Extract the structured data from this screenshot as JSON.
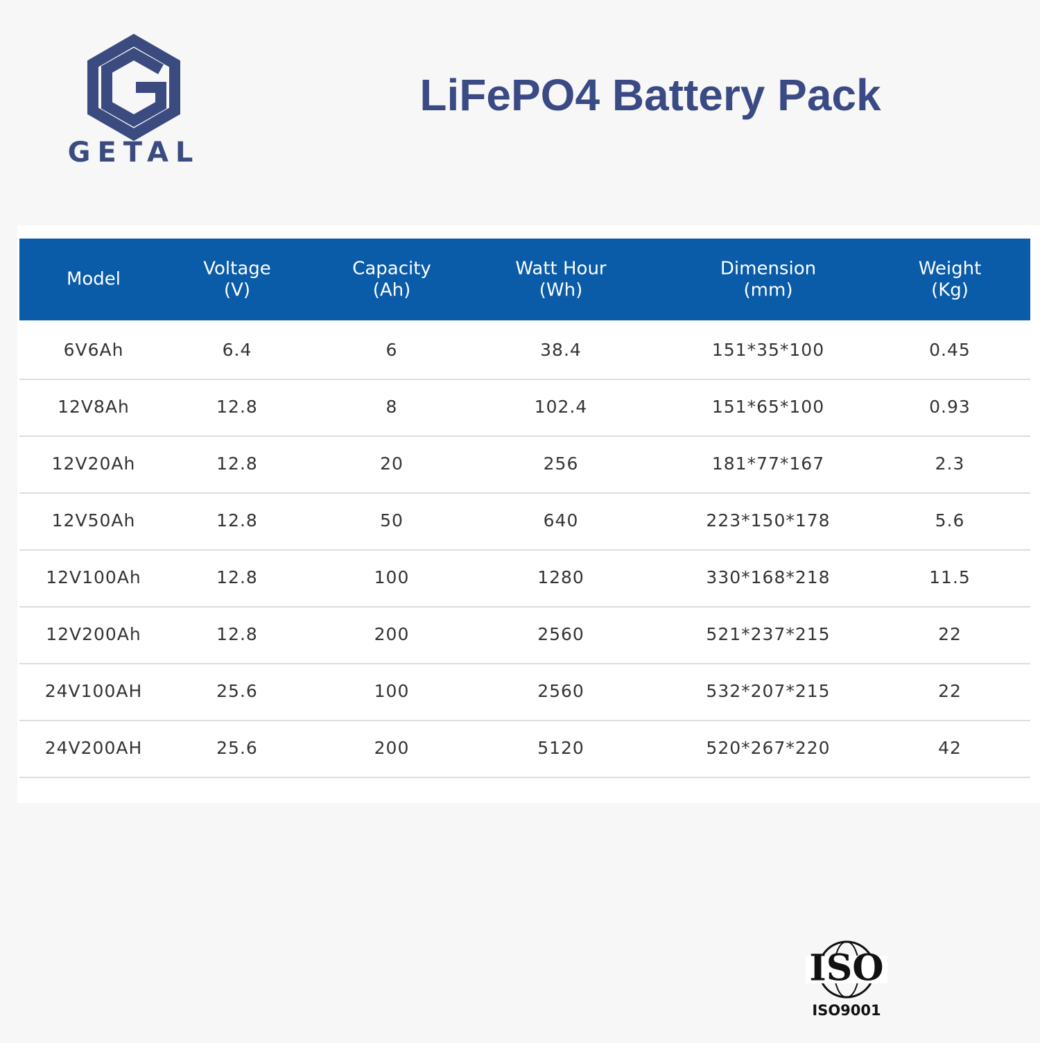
{
  "logo": {
    "brand": "GETAL"
  },
  "header": {
    "title": "LiFePO4 Battery Pack"
  },
  "table": {
    "columns": [
      [
        "Model"
      ],
      [
        "Voltage",
        "(V)"
      ],
      [
        "Capacity",
        "(Ah)"
      ],
      [
        "Watt Hour",
        "(Wh)"
      ],
      [
        "Dimension",
        "(mm)"
      ],
      [
        "Weight",
        "(Kg)"
      ]
    ],
    "rows": [
      [
        "6V6Ah",
        "6.4",
        "6",
        "38.4",
        "151*35*100",
        "0.45"
      ],
      [
        "12V8Ah",
        "12.8",
        "8",
        "102.4",
        "151*65*100",
        "0.93"
      ],
      [
        "12V20Ah",
        "12.8",
        "20",
        "256",
        "181*77*167",
        "2.3"
      ],
      [
        "12V50Ah",
        "12.8",
        "50",
        "640",
        "223*150*178",
        "5.6"
      ],
      [
        "12V100Ah",
        "12.8",
        "100",
        "1280",
        "330*168*218",
        "11.5"
      ],
      [
        "12V200Ah",
        "12.8",
        "200",
        "2560",
        "521*237*215",
        "22"
      ],
      [
        "24V100AH",
        "25.6",
        "100",
        "2560",
        "532*207*215",
        "22"
      ],
      [
        "24V200AH",
        "25.6",
        "200",
        "5120",
        "520*267*220",
        "42"
      ]
    ]
  },
  "certification": {
    "mark": "ISO",
    "standard": "ISO9001"
  }
}
